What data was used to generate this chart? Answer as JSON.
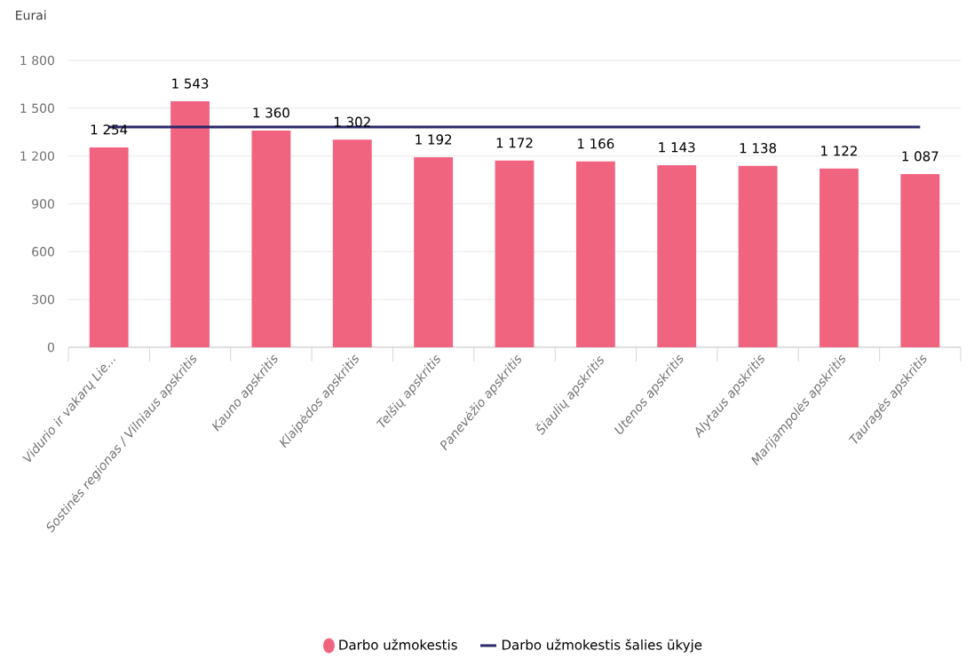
{
  "chart_data": {
    "type": "bar",
    "ylabel": "Eurai",
    "categories": [
      "Vidurio ir vakarų Lie...",
      "Sostinės regionas / Vilniaus apskritis",
      "Kauno apskritis",
      "Klaipėdos apskritis",
      "Telšių apskritis",
      "Panevėžio apskritis",
      "Šiaulių apskritis",
      "Utenos apskritis",
      "Alytaus apskritis",
      "Marijampolės apskritis",
      "Tauragės apskritis"
    ],
    "series": [
      {
        "name": "Darbo užmokestis",
        "color": "#f06480",
        "values": [
          1254,
          1543,
          1360,
          1302,
          1192,
          1172,
          1166,
          1143,
          1138,
          1122,
          1087
        ],
        "value_labels": [
          "1 254",
          "1 543",
          "1 360",
          "1 302",
          "1 192",
          "1 172",
          "1 166",
          "1 143",
          "1 138",
          "1 122",
          "1 087"
        ]
      },
      {
        "name": "Darbo užmokestis šalies ūkyje",
        "type": "line",
        "color": "#2b2a6b",
        "values": [
          1382,
          1382,
          1382,
          1382,
          1382,
          1382,
          1382,
          1382,
          1382,
          1382,
          1382
        ]
      }
    ],
    "ylim": [
      0,
      1800
    ],
    "yticks": [
      0,
      300,
      600,
      900,
      {
        "value": 1200,
        "label": "1 200"
      },
      {
        "value": 1500,
        "label": "1 500"
      },
      {
        "value": 1800,
        "label": "1 800"
      }
    ],
    "grid": "y",
    "legend": "bottom"
  }
}
